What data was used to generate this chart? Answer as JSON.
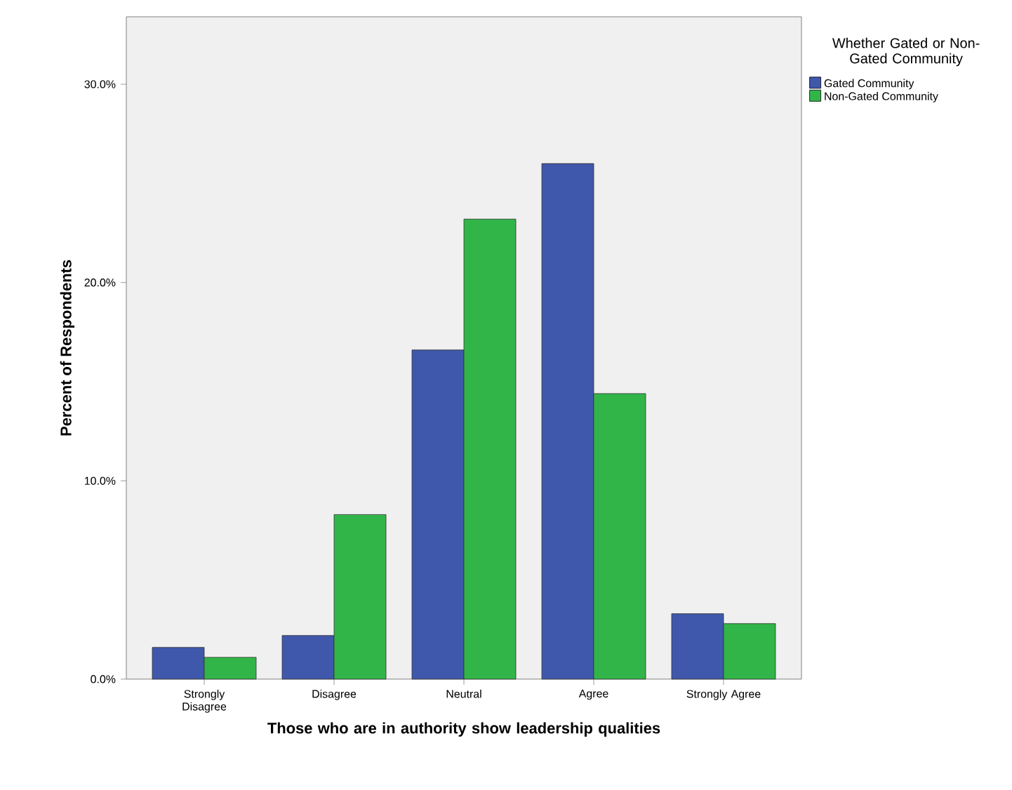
{
  "chart_data": {
    "type": "bar",
    "xlabel": "Those who are in authority show leadership qualities",
    "ylabel": "Percent of Respondents",
    "legend_title": "Whether Gated or Non-Gated Community",
    "categories": [
      "Strongly Disagree",
      "Disagree",
      "Neutral",
      "Agree",
      "Strongly Agree"
    ],
    "series": [
      {
        "name": "Gated Community",
        "color": "#3f58ab",
        "values": [
          1.6,
          2.2,
          16.6,
          26.0,
          3.3
        ]
      },
      {
        "name": "Non-Gated Community",
        "color": "#31b548",
        "values": [
          1.1,
          8.3,
          23.2,
          14.4,
          2.8
        ]
      }
    ],
    "ylim": [
      0,
      33.4
    ],
    "yticks": [
      {
        "value": 0,
        "label": "0.0%"
      },
      {
        "value": 10,
        "label": "10.0%"
      },
      {
        "value": 20,
        "label": "20.0%"
      },
      {
        "value": 30,
        "label": "30.0%"
      }
    ],
    "legend": "top right",
    "grid": false
  }
}
